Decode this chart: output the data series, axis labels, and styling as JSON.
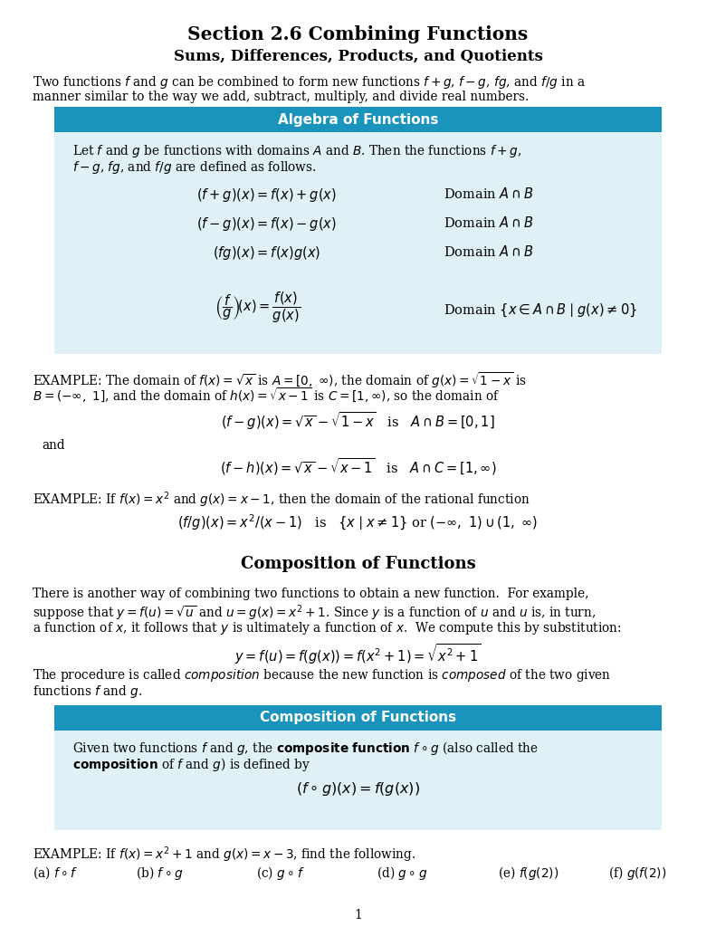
{
  "title": "Section 2.6 Combining Functions",
  "subtitle": "Sums, Differences, Products, and Quotients",
  "bg_color": "#ffffff",
  "box_header_color": "#1a94bc",
  "box_bg_color": "#dff0f7",
  "box1_title": "Algebra of Functions",
  "box2_title": "Composition of Functions"
}
